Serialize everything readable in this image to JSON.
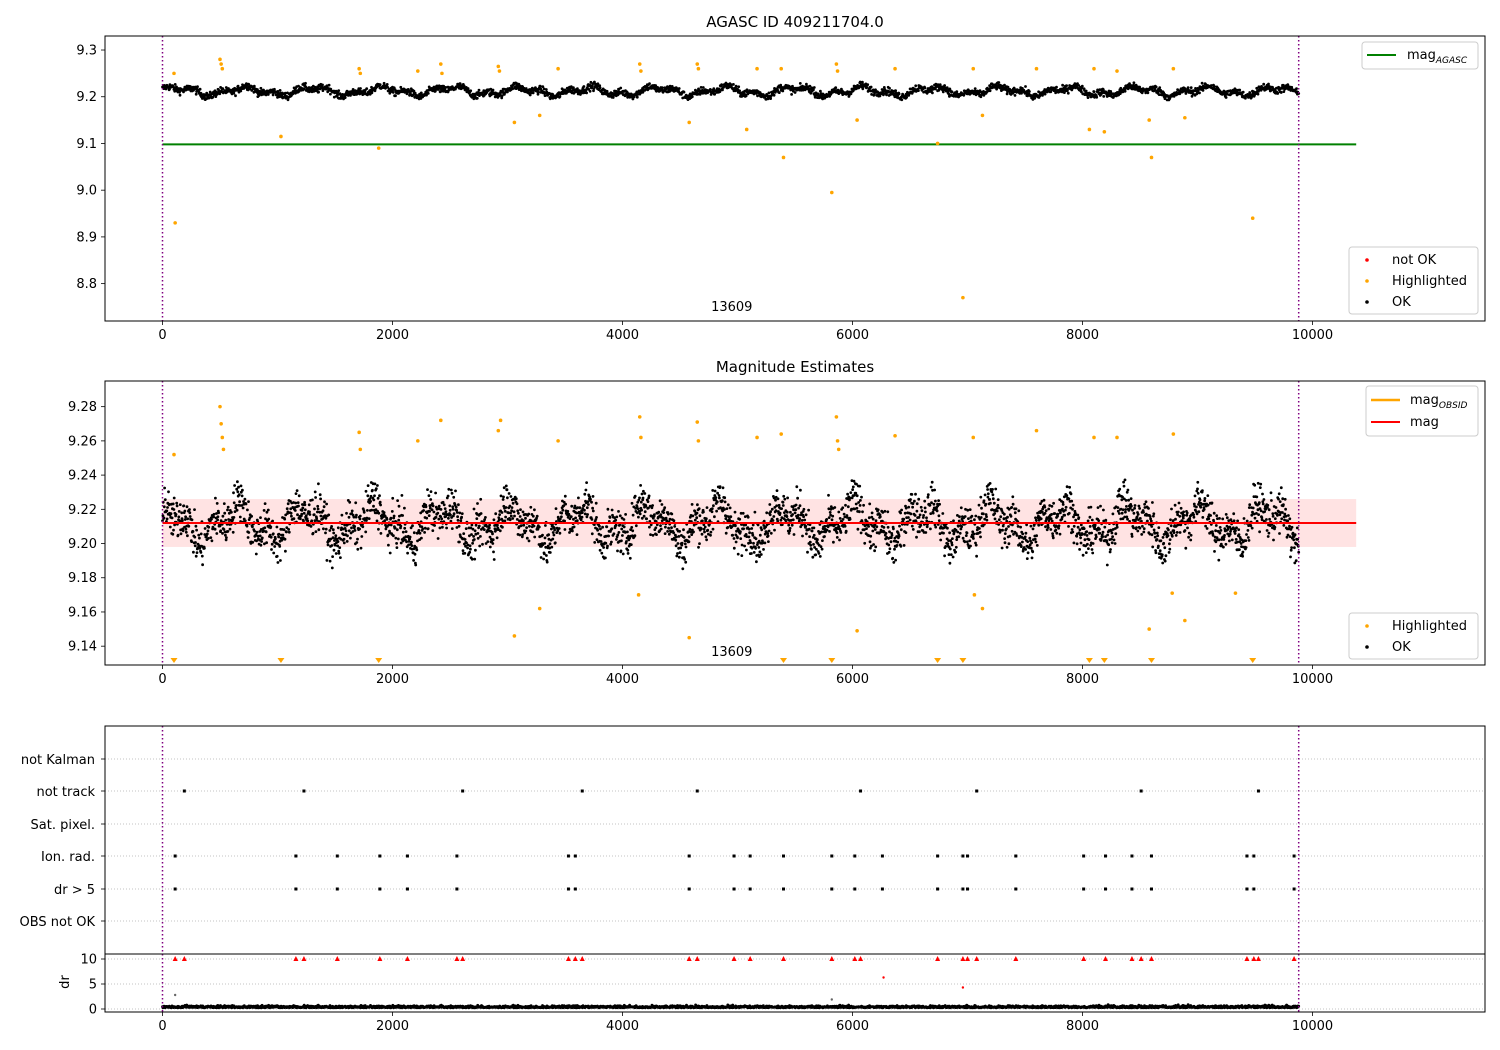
{
  "colors": {
    "ok": "#000000",
    "highlighted": "#ffa500",
    "not_ok": "#ff0000",
    "agasc_line": "#008000",
    "mag_line": "#ff0000",
    "band_fill": "#ffcccc",
    "obsid_line": "#800080"
  },
  "chart_data": [
    {
      "type": "scatter",
      "title": "AGASC ID 409211704.0",
      "xlim": [
        -500,
        11500
      ],
      "ylim": [
        8.72,
        9.33
      ],
      "xticks": [
        0,
        2000,
        4000,
        6000,
        8000,
        10000
      ],
      "yticks": [
        8.8,
        8.9,
        9.0,
        9.1,
        9.2,
        9.3
      ],
      "ytick_labels": [
        "8.8",
        "8.9",
        "9.0",
        "9.1",
        "9.2",
        "9.3"
      ],
      "obsid_boundaries": [
        0,
        9880
      ],
      "obsid_label": "13609",
      "obsid_label_x": 4950,
      "ok_band": {
        "x": [
          0,
          9880
        ],
        "center": 9.212,
        "amplitude": 0.012,
        "noise": 0.008
      },
      "mag_agasc": {
        "value": 9.098,
        "x": [
          0,
          10380
        ]
      },
      "highlighted_points": [
        [
          100,
          9.25
        ],
        [
          110,
          8.93
        ],
        [
          500,
          9.28
        ],
        [
          510,
          9.27
        ],
        [
          520,
          9.26
        ],
        [
          1030,
          9.115
        ],
        [
          1710,
          9.26
        ],
        [
          1720,
          9.25
        ],
        [
          1880,
          9.09
        ],
        [
          2220,
          9.255
        ],
        [
          2420,
          9.27
        ],
        [
          2430,
          9.25
        ],
        [
          2920,
          9.265
        ],
        [
          2930,
          9.255
        ],
        [
          3060,
          9.145
        ],
        [
          3280,
          9.16
        ],
        [
          3440,
          9.26
        ],
        [
          4150,
          9.27
        ],
        [
          4160,
          9.255
        ],
        [
          4580,
          9.145
        ],
        [
          4650,
          9.27
        ],
        [
          4660,
          9.26
        ],
        [
          5080,
          9.13
        ],
        [
          5170,
          9.26
        ],
        [
          5380,
          9.26
        ],
        [
          5400,
          9.07
        ],
        [
          5820,
          8.995
        ],
        [
          5860,
          9.27
        ],
        [
          5870,
          9.255
        ],
        [
          6040,
          9.15
        ],
        [
          6370,
          9.26
        ],
        [
          6740,
          9.1
        ],
        [
          6960,
          8.77
        ],
        [
          7050,
          9.26
        ],
        [
          7130,
          9.16
        ],
        [
          7600,
          9.26
        ],
        [
          8060,
          9.13
        ],
        [
          8100,
          9.26
        ],
        [
          8190,
          9.125
        ],
        [
          8300,
          9.255
        ],
        [
          8580,
          9.15
        ],
        [
          8600,
          9.07
        ],
        [
          8790,
          9.26
        ],
        [
          8890,
          9.155
        ],
        [
          9480,
          8.94
        ]
      ],
      "legend_lines": [
        {
          "label": "mag",
          "subscript": "AGASC",
          "color": "#008000"
        }
      ],
      "legend_points": [
        {
          "label": "not OK",
          "color": "#ff0000"
        },
        {
          "label": "Highlighted",
          "color": "#ffa500"
        },
        {
          "label": "OK",
          "color": "#000000"
        }
      ]
    },
    {
      "type": "scatter",
      "title": "Magnitude Estimates",
      "xlim": [
        -500,
        11500
      ],
      "ylim": [
        9.129,
        9.295
      ],
      "xticks": [
        0,
        2000,
        4000,
        6000,
        8000,
        10000
      ],
      "yticks": [
        9.14,
        9.16,
        9.18,
        9.2,
        9.22,
        9.24,
        9.26,
        9.28
      ],
      "ytick_labels": [
        "9.14",
        "9.16",
        "9.18",
        "9.20",
        "9.22",
        "9.24",
        "9.26",
        "9.28"
      ],
      "obsid_boundaries": [
        0,
        9880
      ],
      "obsid_label": "13609",
      "obsid_label_x": 4950,
      "ok_band": {
        "x": [
          0,
          9880
        ],
        "center": 9.212,
        "amplitude": 0.014,
        "noise": 0.012
      },
      "mag": {
        "value": 9.212,
        "x": [
          0,
          10380
        ]
      },
      "mag_band": [
        9.198,
        9.226
      ],
      "highlighted_points": [
        [
          100,
          9.252
        ],
        [
          500,
          9.28
        ],
        [
          510,
          9.27
        ],
        [
          520,
          9.262
        ],
        [
          530,
          9.255
        ],
        [
          1710,
          9.265
        ],
        [
          1720,
          9.255
        ],
        [
          2220,
          9.26
        ],
        [
          2420,
          9.272
        ],
        [
          2920,
          9.266
        ],
        [
          2940,
          9.272
        ],
        [
          3060,
          9.146
        ],
        [
          3280,
          9.162
        ],
        [
          3440,
          9.26
        ],
        [
          4150,
          9.274
        ],
        [
          4160,
          9.262
        ],
        [
          4140,
          9.17
        ],
        [
          4580,
          9.145
        ],
        [
          4650,
          9.271
        ],
        [
          4660,
          9.26
        ],
        [
          5170,
          9.262
        ],
        [
          5380,
          9.264
        ],
        [
          5860,
          9.274
        ],
        [
          5870,
          9.26
        ],
        [
          5880,
          9.255
        ],
        [
          6040,
          9.149
        ],
        [
          6370,
          9.263
        ],
        [
          7050,
          9.262
        ],
        [
          7060,
          9.17
        ],
        [
          7130,
          9.162
        ],
        [
          7600,
          9.266
        ],
        [
          8100,
          9.262
        ],
        [
          8300,
          9.262
        ],
        [
          8580,
          9.15
        ],
        [
          8780,
          9.171
        ],
        [
          8790,
          9.264
        ],
        [
          8890,
          9.155
        ],
        [
          9330,
          9.171
        ]
      ],
      "offscale_low": [
        100,
        1030,
        1880,
        5400,
        5820,
        6740,
        6960,
        8060,
        8190,
        8600,
        9480
      ],
      "legend_lines": [
        {
          "label": "mag",
          "subscript": "OBSID",
          "color": "#ffa500"
        },
        {
          "label": "mag",
          "subscript": "",
          "color": "#ff0000"
        }
      ],
      "legend_points": [
        {
          "label": "Highlighted",
          "color": "#ffa500"
        },
        {
          "label": "OK",
          "color": "#000000"
        }
      ]
    },
    {
      "type": "scatter",
      "title": "",
      "xlim": [
        -500,
        11500
      ],
      "xticks": [
        0,
        2000,
        4000,
        6000,
        8000,
        10000
      ],
      "obsid_boundaries": [
        0,
        9880
      ],
      "flag_rows": [
        "not Kalman",
        "not track",
        "Sat. pixel.",
        "Ion. rad.",
        "dr > 5",
        "OBS not OK"
      ],
      "flag_times": {
        "not track": [
          190,
          1230,
          2610,
          3650,
          4650,
          6070,
          7080,
          8510,
          9530
        ],
        "Ion. rad.": [
          110,
          1160,
          1520,
          1890,
          2130,
          2560,
          3530,
          3590,
          4580,
          4970,
          5110,
          5400,
          5820,
          6020,
          6260,
          6740,
          6960,
          7000,
          7420,
          8010,
          8200,
          8430,
          8600,
          9430,
          9490,
          9840
        ],
        "dr > 5": [
          110,
          1160,
          1520,
          1890,
          2130,
          2560,
          3530,
          3590,
          4580,
          4970,
          5110,
          5400,
          5820,
          6020,
          6260,
          6740,
          6960,
          7000,
          7420,
          8010,
          8200,
          8430,
          8600,
          9430,
          9490,
          9840
        ]
      },
      "dr": {
        "ylabel": "dr",
        "yticks": [
          0,
          5,
          10
        ],
        "ytick_labels": [
          "0",
          "5",
          "10"
        ],
        "ylim": [
          -0.5,
          10.5
        ],
        "clipped_at": 10,
        "clipped_times": [
          110,
          190,
          1160,
          1230,
          1520,
          1890,
          2130,
          2560,
          2610,
          3530,
          3590,
          3650,
          4580,
          4650,
          4970,
          5110,
          5400,
          5820,
          6020,
          6070,
          6740,
          6960,
          7000,
          7080,
          7420,
          8010,
          8200,
          8430,
          8510,
          8600,
          9430,
          9490,
          9530,
          9840
        ],
        "outliers": [
          [
            6270,
            6.3
          ],
          [
            6960,
            4.3
          ],
          [
            110,
            2.8
          ],
          [
            5820,
            1.9
          ]
        ],
        "noise_max": 0.9,
        "x": [
          0,
          9880
        ]
      }
    }
  ]
}
